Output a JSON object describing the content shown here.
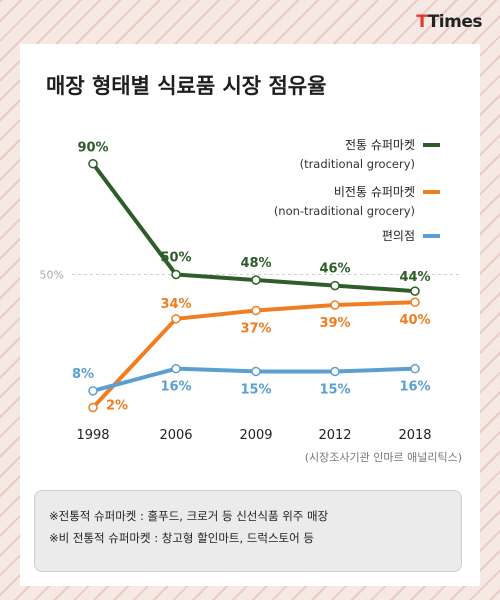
{
  "brand": {
    "logo_t": "T",
    "logo_rest": "Times"
  },
  "chart_data": {
    "type": "line",
    "title": "매장 형태별 식료품 시장 점유율",
    "categories": [
      "1998",
      "2006",
      "2009",
      "2012",
      "2018"
    ],
    "series": [
      {
        "name": "전통 슈퍼마켓",
        "subname": "(traditional grocery)",
        "color": "#2e5d2a",
        "values": [
          90,
          50,
          48,
          46,
          44
        ],
        "labels": [
          "90%",
          "50%",
          "48%",
          "46%",
          "44%"
        ],
        "label_pos": "above"
      },
      {
        "name": "비전통 슈퍼마켓",
        "subname": "(non-traditional grocery)",
        "color": "#ef7d22",
        "values": [
          2,
          34,
          37,
          39,
          40
        ],
        "labels": [
          "2%",
          "34%",
          "37%",
          "39%",
          "40%"
        ],
        "label_pos": "mixed"
      },
      {
        "name": "편의점",
        "subname": "",
        "color": "#5b9fd1",
        "values": [
          8,
          16,
          15,
          15,
          16
        ],
        "labels": [
          "8%",
          "16%",
          "15%",
          "15%",
          "16%"
        ],
        "label_pos": "mixed"
      }
    ],
    "reference_line": {
      "value": 50,
      "label": "50%"
    },
    "ylim": [
      0,
      100
    ],
    "legend_position": "top-right",
    "source": "(시장조사기관 인마르 애널리틱스)"
  },
  "notes": [
    "※전통적 슈퍼마켓 : 홀푸드, 크로거 등 신선식품 위주 매장",
    "※비 전통적 슈퍼마켓 : 창고형 할인마트, 드럭스토어 등"
  ]
}
